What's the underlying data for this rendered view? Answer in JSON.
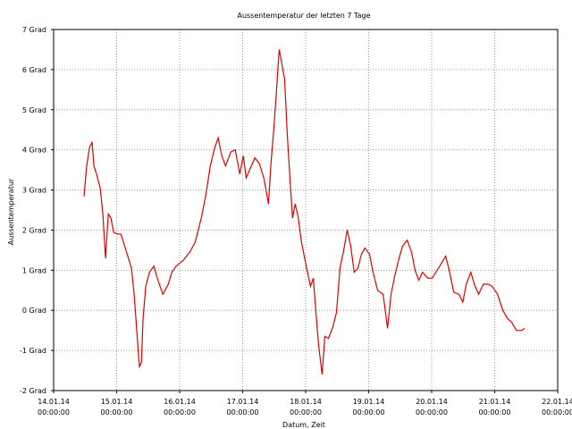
{
  "chart_data": {
    "type": "line",
    "title": "Aussentemperatur der letzten 7 Tage",
    "x_label": "Datum, Zeit",
    "y_label": "Aussentemperatur",
    "xlim": [
      "14.01.14 00:00",
      "22.01.14 00:00"
    ],
    "xticks": [
      {
        "date": "14.01.14",
        "time": "00:00:00"
      },
      {
        "date": "15.01.14",
        "time": "00:00:00"
      },
      {
        "date": "16.01.14",
        "time": "00:00:00"
      },
      {
        "date": "17.01.14",
        "time": "00:00:00"
      },
      {
        "date": "18.01.14",
        "time": "00:00:00"
      },
      {
        "date": "19.01.14",
        "time": "00:00:00"
      },
      {
        "date": "20.01.14",
        "time": "00:00:00"
      },
      {
        "date": "21.01.14",
        "time": "00:00:00"
      },
      {
        "date": "22.01.14",
        "time": "00:00:00"
      }
    ],
    "ylim": [
      -2,
      7
    ],
    "yticks": [
      {
        "value": -2,
        "label": "-2 Grad"
      },
      {
        "value": -1,
        "label": "-1 Grad"
      },
      {
        "value": 0,
        "label": "0 Grad"
      },
      {
        "value": 1,
        "label": "1 Grad"
      },
      {
        "value": 2,
        "label": "2 Grad"
      },
      {
        "value": 3,
        "label": "3 Grad"
      },
      {
        "value": 4,
        "label": "4 Grad"
      },
      {
        "value": 5,
        "label": "5 Grad"
      },
      {
        "value": 6,
        "label": "6 Grad"
      },
      {
        "value": 7,
        "label": "7 Grad"
      }
    ],
    "grid": true,
    "color": "#dd0000",
    "x": [
      "14.01.14 11:35",
      "14.01.14 12:35",
      "14.01.14 13:40",
      "14.01.14 14:40",
      "14.01.14 15:20",
      "14.01.14 16:20",
      "14.01.14 17:45",
      "14.01.14 18:45",
      "14.01.14 19:45",
      "14.01.14 20:50",
      "14.01.14 21:50",
      "14.01.14 22:50",
      "15.01.14 00:10",
      "15.01.14 01:35",
      "15.01.14 02:35",
      "15.01.14 04:00",
      "15.01.14 05:40",
      "15.01.14 06:40",
      "15.01.14 07:40",
      "15.01.14 08:40",
      "15.01.14 09:25",
      "15.01.14 10:05",
      "15.01.14 11:05",
      "15.01.14 12:30",
      "15.01.14 14:10",
      "15.01.14 15:30",
      "15.01.14 17:35",
      "15.01.14 19:40",
      "15.01.14 21:00",
      "15.01.14 22:40",
      "16.01.14 01:25",
      "16.01.14 03:50",
      "16.01.14 05:55",
      "16.01.14 08:15",
      "16.01.14 09:55",
      "16.01.14 11:40",
      "16.01.14 13:20",
      "16.01.14 14:40",
      "16.01.14 16:05",
      "16.01.14 17:30",
      "16.01.14 19:30",
      "16.01.14 21:10",
      "16.01.14 22:55",
      "17.01.14 00:15",
      "17.01.14 01:20",
      "17.01.14 02:40",
      "17.01.14 04:40",
      "17.01.14 06:25",
      "17.01.14 08:05",
      "17.01.14 09:50",
      "17.01.14 10:50",
      "17.01.14 11:50",
      "17.01.14 12:55",
      "17.01.14 13:55",
      "17.01.14 14:55",
      "17.01.14 16:00",
      "17.01.14 17:00",
      "17.01.14 18:00",
      "17.01.14 19:00",
      "17.01.14 20:00",
      "17.01.14 21:05",
      "17.01.14 22:25",
      "18.01.14 00:05",
      "18.01.14 01:50",
      "18.01.14 02:55",
      "18.01.14 03:55",
      "18.01.14 04:55",
      "18.01.14 06:15",
      "18.01.14 07:20",
      "18.01.14 08:40",
      "18.01.14 10:25",
      "18.01.14 11:45",
      "18.01.14 13:05",
      "18.01.14 14:30",
      "18.01.14 15:50",
      "18.01.14 17:10",
      "18.01.14 18:30",
      "18.01.14 19:55",
      "18.01.14 21:15",
      "18.01.14 22:35",
      "19.01.14 00:20",
      "19.01.14 01:40",
      "19.01.14 03:25",
      "19.01.14 05:30",
      "19.01.14 07:10",
      "19.01.14 08:30",
      "19.01.14 09:55",
      "19.01.14 11:35",
      "19.01.14 12:55",
      "19.01.14 14:40",
      "19.01.14 16:20",
      "19.01.14 17:40",
      "19.01.14 19:05",
      "19.01.14 20:30",
      "19.01.14 22:30",
      "20.01.14 00:10",
      "20.01.14 02:35",
      "20.01.14 05:20",
      "20.01.14 06:40",
      "20.01.14 08:25",
      "20.01.14 10:25",
      "20.01.14 11:50",
      "20.01.14 13:10",
      "20.01.14 14:55",
      "20.01.14 16:15",
      "20.01.14 17:55",
      "20.01.14 19:40",
      "20.01.14 21:20",
      "20.01.14 23:00",
      "21.01.14 01:05",
      "21.01.14 03:05",
      "21.01.14 04:50",
      "21.01.14 06:30",
      "21.01.14 08:15",
      "21.01.14 10:20",
      "21.01.14 11:20"
    ],
    "values": [
      2.84,
      3.6,
      4.05,
      4.2,
      3.6,
      3.4,
      3.05,
      2.4,
      1.3,
      2.4,
      2.3,
      1.95,
      1.9,
      1.9,
      1.7,
      1.4,
      1.05,
      0.4,
      -0.5,
      -1.4,
      -1.3,
      -0.2,
      0.6,
      0.95,
      1.1,
      0.8,
      0.4,
      0.65,
      0.95,
      1.1,
      1.25,
      1.45,
      1.7,
      2.3,
      2.85,
      3.6,
      4.05,
      4.3,
      3.85,
      3.6,
      3.95,
      4.0,
      3.4,
      3.85,
      3.3,
      3.5,
      3.8,
      3.65,
      3.3,
      2.65,
      3.7,
      4.5,
      5.5,
      6.5,
      6.15,
      5.75,
      4.4,
      3.3,
      2.3,
      2.65,
      2.35,
      1.7,
      1.15,
      0.6,
      0.8,
      -0.05,
      -0.85,
      -1.6,
      -0.65,
      -0.7,
      -0.4,
      -0.05,
      1.05,
      1.5,
      2.0,
      1.6,
      0.95,
      1.05,
      1.4,
      1.55,
      1.4,
      0.95,
      0.5,
      0.4,
      -0.45,
      0.4,
      0.85,
      1.3,
      1.6,
      1.75,
      1.45,
      1.0,
      0.75,
      0.95,
      0.8,
      0.8,
      1.05,
      1.35,
      1.0,
      0.45,
      0.4,
      0.2,
      0.65,
      0.95,
      0.65,
      0.4,
      0.65,
      0.65,
      0.6,
      0.4,
      0.0,
      -0.2,
      -0.3,
      -0.5,
      -0.5,
      -0.45
    ]
  }
}
